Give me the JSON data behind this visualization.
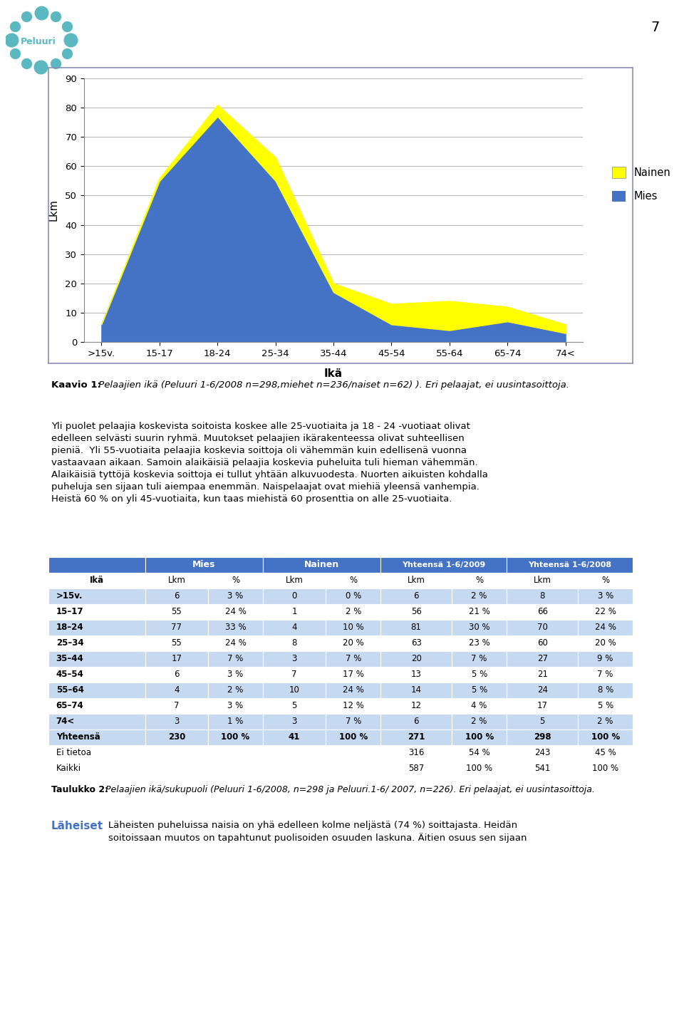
{
  "age_groups": [
    ">15v.",
    "15-17",
    "18-24",
    "25-34",
    "35-44",
    "45-54",
    "55-64",
    "65-74",
    "74<"
  ],
  "mies_values": [
    6,
    55,
    77,
    55,
    17,
    6,
    4,
    7,
    3
  ],
  "nainen_values": [
    0,
    1,
    4,
    8,
    3,
    7,
    10,
    5,
    3
  ],
  "mies_color": "#4472C4",
  "nainen_color": "#FFFF00",
  "ylabel": "Lkm",
  "xlabel": "Ikä",
  "ylim": [
    0,
    90
  ],
  "yticks": [
    0,
    10,
    20,
    30,
    40,
    50,
    60,
    70,
    80,
    90
  ],
  "legend_nainen": "Nainen",
  "legend_mies": "Mies",
  "caption_bold": "Kaavio 1:",
  "caption_italic": " Pelaajien ikä (Peluuri 1-6/2008 n=298,miehet n=236/naiset n=62) ). Eri pelaajat, ei uusintasoittoja.",
  "paragraph_text": "Yli puolet pelaajia koskevista soitoista koskee alle 25-vuotiaita ja 18 - 24 -vuotiaat olivat\nedelleen selvästi suurin ryhmä. Muutokset pelaajien ikärakenteessa olivat suhteellisen\npieniä.  Yli 55-vuotiaita pelaajia koskevia soittoja oli vähemmän kuin edellisenä vuonna\nvastaavaan aikaan. Samoin alaikäisiä pelaajia koskevia puheluita tuli hieman vähemmän.\nAlaikäisiä tyttöjä koskevia soittoja ei tullut yhtään alkuvuodesta. Nuorten aikuisten kohdalla\npuheluja sen sijaan tuli aiempaa enemmän. Naispelaajat ovat miehiä yleensä vanhempia.\nHeistä 60 % on yli 45-vuotiaita, kun taas miehistä 60 prosenttia on alle 25-vuotiaita.",
  "table_header_bg": "#4472C4",
  "table_header_color": "#FFFFFF",
  "table_alt_bg": "#C5D9F1",
  "table_white_bg": "#FFFFFF",
  "table_data": {
    "row_labels": [
      ">15v.",
      "15–17",
      "18–24",
      "25–34",
      "35–44",
      "45–54",
      "55–64",
      "65–74",
      "74<",
      "Yhteensä",
      "Ei tietoa",
      "Kaikki"
    ],
    "mies_lkm": [
      "6",
      "55",
      "77",
      "55",
      "17",
      "6",
      "4",
      "7",
      "3",
      "230",
      "",
      ""
    ],
    "mies_pct": [
      "3 %",
      "24 %",
      "33 %",
      "24 %",
      "7 %",
      "3 %",
      "2 %",
      "3 %",
      "1 %",
      "100 %",
      "",
      ""
    ],
    "nainen_lkm": [
      "0",
      "1",
      "4",
      "8",
      "3",
      "7",
      "10",
      "5",
      "3",
      "41",
      "",
      ""
    ],
    "nainen_pct": [
      "0 %",
      "2 %",
      "10 %",
      "20 %",
      "7 %",
      "17 %",
      "24 %",
      "12 %",
      "7 %",
      "100 %",
      "",
      ""
    ],
    "yht2009_lkm": [
      "6",
      "56",
      "81",
      "63",
      "20",
      "13",
      "14",
      "12",
      "6",
      "271",
      "316",
      "587"
    ],
    "yht2009_pct": [
      "2 %",
      "21 %",
      "30 %",
      "23 %",
      "7 %",
      "5 %",
      "5 %",
      "4 %",
      "2 %",
      "100 %",
      "54 %",
      "100 %"
    ],
    "yht2008_lkm": [
      "8",
      "66",
      "70",
      "60",
      "27",
      "21",
      "24",
      "17",
      "5",
      "298",
      "243",
      "541"
    ],
    "yht2008_pct": [
      "3 %",
      "22 %",
      "24 %",
      "20 %",
      "9 %",
      "7 %",
      "8 %",
      "5 %",
      "2 %",
      "100 %",
      "45 %",
      "100 %"
    ]
  },
  "table_caption_bold": "Taulukko 2:",
  "table_caption_italic": " Pelaajien ikä/sukupuoli (Peluuri 1-6/2008, n=298 ja Peluuri.1-6/ 2007, n=226). Eri pelaajat, ei uusintasoittoja.",
  "laheiset_title": "Läheiset",
  "laheiset_text": "Läheisten puheluissa naisia on yhä edelleen kolme neljästä (74 %) soittajasta. Heidän\nsoitoissaan muutos on tapahtunut puolisoiden osuuden laskuna. Äitien osuus sen sijaan",
  "background_color": "#FFFFFF",
  "page_number": "7",
  "peluuri_color": "#5BB8C1",
  "chart_border_color": "#8B8DB8",
  "chart_bg": "#FFFFFF"
}
